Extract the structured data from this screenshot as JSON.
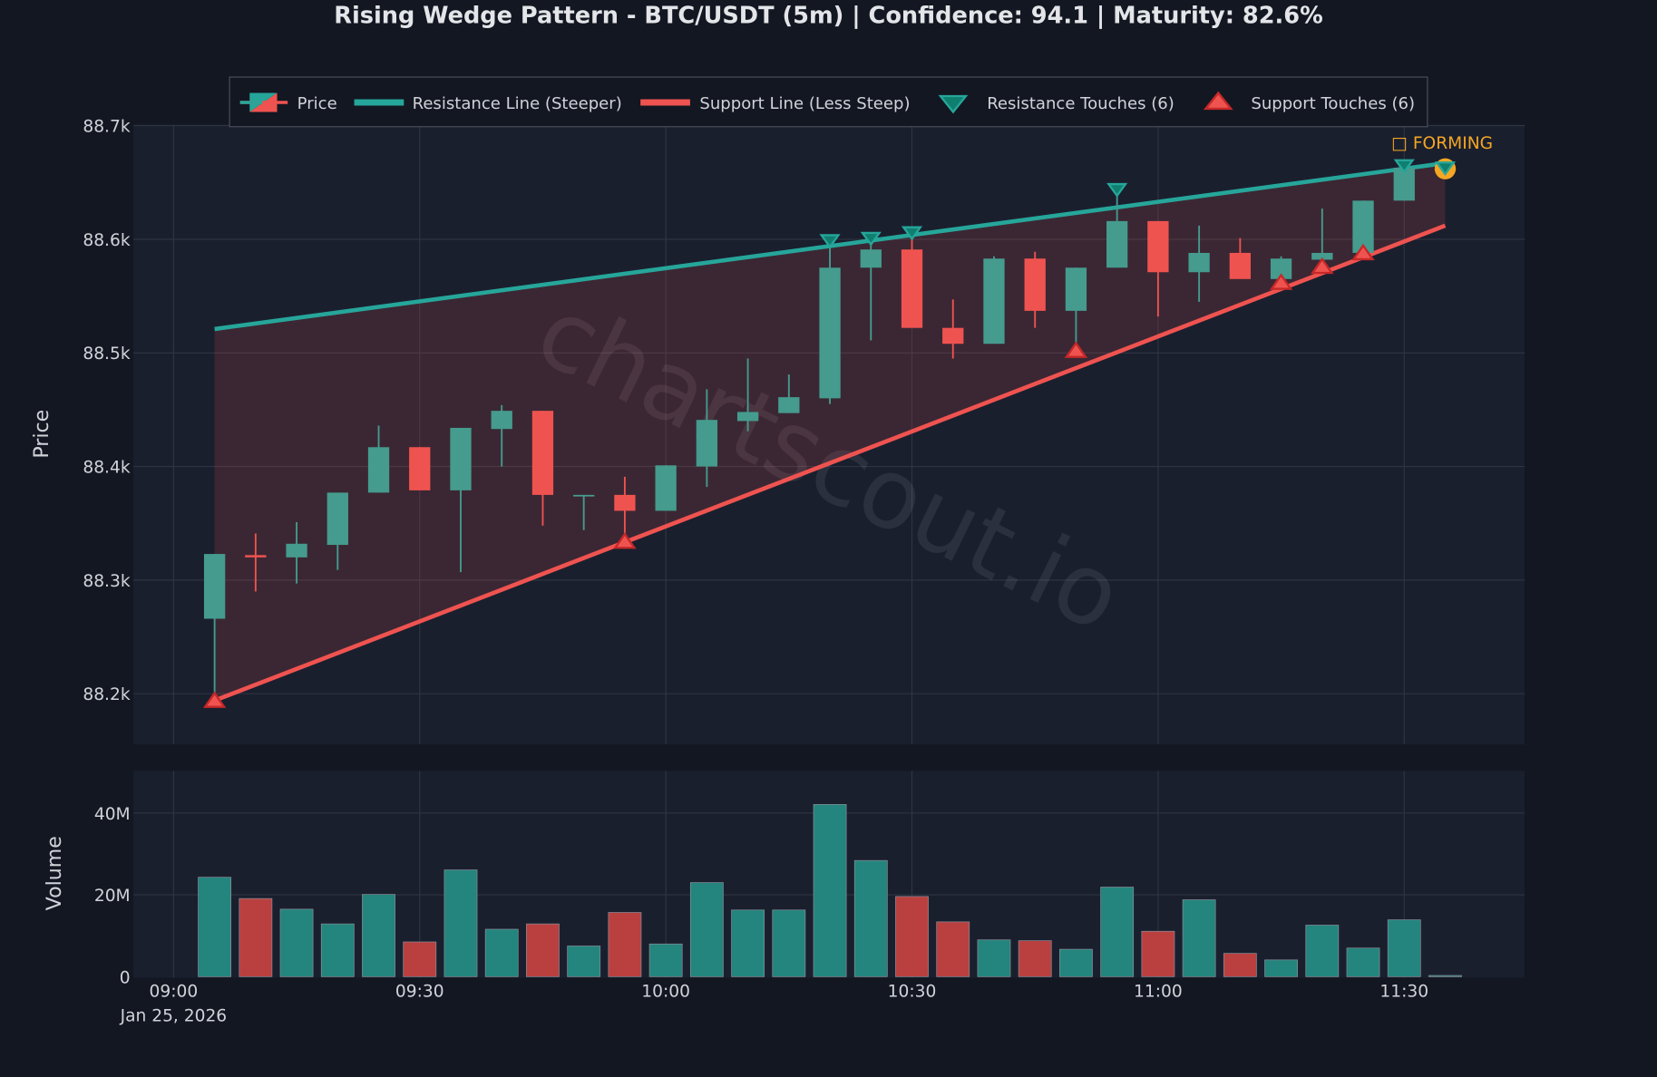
{
  "chart_data": [
    {
      "type": "candlestick",
      "title": "Rising Wedge Pattern - BTC/USDT (5m) | Confidence: 94.1 | Maturity: 82.6%",
      "ylabel": "Price",
      "ylim": [
        88150,
        88700
      ],
      "yticks": [
        88200,
        88300,
        88400,
        88500,
        88600,
        88700
      ],
      "ytick_labels": [
        "88.2k",
        "88.3k",
        "88.4k",
        "88.5k",
        "88.6k",
        "88.7k"
      ],
      "grid": true,
      "legend_placement": "top-center",
      "legend": [
        "Price",
        "Resistance Line (Steeper)",
        "Support Line (Less Steep)",
        "Resistance Touches (6)",
        "Support Touches (6)"
      ],
      "watermark": "chartscout.io",
      "annotation": "□ FORMING",
      "colors": {
        "up": "#459b8e",
        "down": "#ef5350",
        "resistance": "#26a69a",
        "support": "#ef5350",
        "forming": "#f5a623",
        "wedge_fill": "#ef5350"
      },
      "times": [
        "09:05",
        "09:10",
        "09:15",
        "09:20",
        "09:25",
        "09:30",
        "09:35",
        "09:40",
        "09:45",
        "09:50",
        "09:55",
        "10:00",
        "10:05",
        "10:10",
        "10:15",
        "10:20",
        "10:25",
        "10:30",
        "10:35",
        "10:40",
        "10:45",
        "10:50",
        "10:55",
        "11:00",
        "11:05",
        "11:10",
        "11:15",
        "11:20",
        "11:25",
        "11:30",
        "11:35"
      ],
      "ohlc": [
        [
          88266,
          88323,
          88194,
          88323
        ],
        [
          88322,
          88341,
          88290,
          88320
        ],
        [
          88320,
          88351,
          88297,
          88332
        ],
        [
          88331,
          88377,
          88309,
          88377
        ],
        [
          88377,
          88436,
          88377,
          88417
        ],
        [
          88417,
          88417,
          88379,
          88379
        ],
        [
          88379,
          88434,
          88307,
          88434
        ],
        [
          88433,
          88454,
          88400,
          88449
        ],
        [
          88449,
          88449,
          88348,
          88375
        ],
        [
          88374,
          88375,
          88344,
          88375
        ],
        [
          88375,
          88391,
          88334,
          88361
        ],
        [
          88361,
          88401,
          88361,
          88401
        ],
        [
          88400,
          88468,
          88382,
          88441
        ],
        [
          88440,
          88495,
          88431,
          88448
        ],
        [
          88447,
          88481,
          88447,
          88461
        ],
        [
          88460,
          88596,
          88455,
          88575
        ],
        [
          88575,
          88598,
          88511,
          88591
        ],
        [
          88591,
          88602,
          88522,
          88522
        ],
        [
          88522,
          88547,
          88495,
          88508
        ],
        [
          88508,
          88585,
          88508,
          88583
        ],
        [
          88583,
          88589,
          88522,
          88537
        ],
        [
          88537,
          88575,
          88502,
          88575
        ],
        [
          88575,
          88640,
          88575,
          88616
        ],
        [
          88616,
          88616,
          88532,
          88571
        ],
        [
          88571,
          88612,
          88545,
          88588
        ],
        [
          88588,
          88601,
          88565,
          88565
        ],
        [
          88565,
          88585,
          88562,
          88583
        ],
        [
          88582,
          88627,
          88576,
          88588
        ],
        [
          88588,
          88634,
          88588,
          88634
        ],
        [
          88634,
          88664,
          88634,
          88663
        ],
        [
          88662,
          88662,
          88662,
          88662
        ]
      ],
      "resistance_line": {
        "start": [
          "09:05",
          88521
        ],
        "end": [
          "11:35",
          88667
        ]
      },
      "support_line": {
        "start": [
          "09:05",
          88194
        ],
        "end": [
          "11:35",
          88612
        ]
      },
      "resistance_touches": [
        [
          "10:20",
          88598
        ],
        [
          "10:25",
          88600
        ],
        [
          "10:30",
          88605
        ],
        [
          "10:55",
          88643
        ],
        [
          "11:30",
          88664
        ],
        [
          "11:35",
          88662
        ]
      ],
      "support_touches": [
        [
          "09:05",
          88194
        ],
        [
          "09:55",
          88334
        ],
        [
          "10:50",
          88502
        ],
        [
          "11:15",
          88562
        ],
        [
          "11:20",
          88576
        ],
        [
          "11:25",
          88588
        ]
      ],
      "forming_point": [
        "11:35",
        88662
      ]
    },
    {
      "type": "bar",
      "ylabel": "Volume",
      "ylim": [
        0,
        50
      ],
      "yticks": [
        0,
        20,
        40
      ],
      "ytick_labels": [
        "0",
        "20M",
        "40M"
      ],
      "unit": "M",
      "grid": true,
      "values": [
        24.3,
        19.1,
        16.5,
        12.9,
        20.1,
        8.5,
        26.1,
        11.6,
        12.9,
        7.5,
        15.7,
        8.0,
        23.0,
        16.3,
        16.3,
        42.1,
        28.4,
        19.6,
        13.4,
        9.0,
        8.8,
        6.7,
        21.9,
        11.1,
        18.8,
        5.7,
        4.1,
        12.6,
        7.0,
        13.9,
        0.3
      ],
      "xtick_labels": [
        "09:00",
        "09:30",
        "10:00",
        "10:30",
        "11:00",
        "11:30"
      ],
      "xdate_label": "Jan 25, 2026"
    }
  ]
}
